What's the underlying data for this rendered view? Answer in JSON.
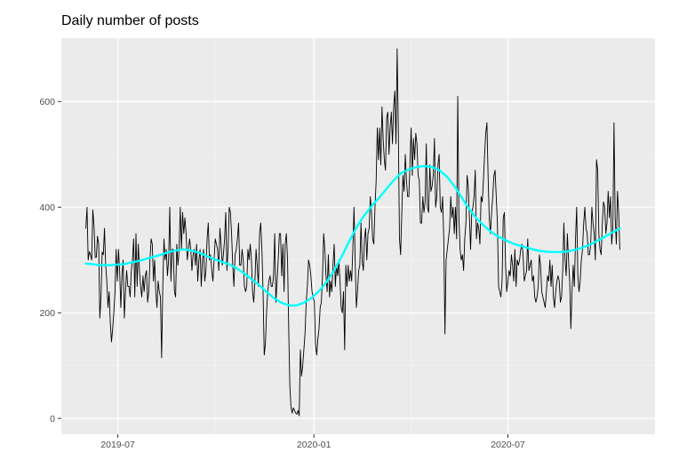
{
  "chart_data": {
    "type": "line",
    "title": "Daily number of posts",
    "xlabel": "",
    "ylabel": "",
    "x_ticks": [
      "2019-07",
      "2020-01",
      "2020-07"
    ],
    "y_ticks": [
      0,
      200,
      400,
      600
    ],
    "ylim": [
      -30,
      720
    ],
    "xlim": [
      "2019-05-09",
      "2020-11-16"
    ],
    "grid": true,
    "legend": "none",
    "x_start": "2019-06-01",
    "x_end": "2020-10-14",
    "colors": {
      "raw": "#000000",
      "smooth": "#00ffff",
      "panel": "#ebebeb",
      "grid_major": "#ffffff",
      "grid_minor": "#f5f5f5"
    },
    "series": [
      {
        "values": [
          360,
          400,
          300,
          316,
          310,
          300,
          395,
          365,
          305,
          305,
          345,
          330,
          190,
          230,
          315,
          310,
          360,
          290,
          260,
          210,
          240,
          180,
          145,
          170,
          200,
          240,
          320,
          260,
          320,
          280,
          210,
          270,
          300,
          190,
          240,
          280,
          250,
          250,
          230,
          280,
          300,
          340,
          230,
          350,
          250,
          330,
          280,
          250,
          230,
          270,
          240,
          270,
          280,
          220,
          240,
          300,
          340,
          330,
          260,
          300,
          240,
          210,
          260,
          240,
          230,
          115,
          250,
          340,
          300,
          320,
          270,
          300,
          400,
          260,
          320,
          320,
          240,
          230,
          330,
          290,
          320,
          400,
          320,
          390,
          350,
          380,
          350,
          300,
          320,
          340,
          320,
          280,
          310,
          320,
          290,
          330,
          260,
          300,
          320,
          250,
          300,
          320,
          260,
          280,
          340,
          370,
          300,
          310,
          280,
          260,
          300,
          340,
          330,
          320,
          280,
          360,
          330,
          290,
          310,
          340,
          390,
          280,
          320,
          400,
          390,
          350,
          290,
          250,
          310,
          320,
          340,
          370,
          290,
          290,
          320,
          300,
          250,
          240,
          250,
          320,
          300,
          330,
          300,
          240,
          220,
          260,
          320,
          290,
          250,
          350,
          370,
          320,
          240,
          120,
          140,
          200,
          240,
          260,
          270,
          250,
          250,
          270,
          350,
          220,
          260,
          300,
          350,
          350,
          270,
          330,
          240,
          330,
          350,
          300,
          170,
          60,
          20,
          10,
          20,
          15,
          10,
          8,
          15,
          5,
          130,
          80,
          100,
          130,
          160,
          220,
          250,
          300,
          290,
          270,
          240,
          230,
          220,
          140,
          120,
          150,
          170,
          210,
          220,
          270,
          350,
          320,
          270,
          240,
          310,
          230,
          260,
          240,
          290,
          330,
          250,
          290,
          270,
          300,
          260,
          210,
          200,
          240,
          130,
          290,
          250,
          290,
          260,
          280,
          260,
          320,
          400,
          300,
          210,
          240,
          280,
          290,
          370,
          300,
          280,
          340,
          360,
          300,
          350,
          360,
          420,
          390,
          340,
          330,
          400,
          450,
          550,
          490,
          550,
          480,
          590,
          530,
          490,
          470,
          570,
          580,
          500,
          550,
          580,
          520,
          590,
          620,
          520,
          700,
          550,
          340,
          310,
          390,
          460,
          430,
          500,
          450,
          420,
          420,
          480,
          550,
          460,
          530,
          490,
          540,
          520,
          460,
          450,
          370,
          370,
          420,
          390,
          410,
          520,
          400,
          390,
          480,
          430,
          440,
          460,
          530,
          400,
          420,
          480,
          500,
          400,
          390,
          420,
          340,
          160,
          300,
          320,
          340,
          360,
          420,
          380,
          400,
          350,
          400,
          340,
          610,
          380,
          320,
          300,
          310,
          280,
          340,
          370,
          460,
          440,
          380,
          320,
          390,
          400,
          420,
          470,
          340,
          370,
          360,
          330,
          420,
          410,
          450,
          500,
          540,
          560,
          460,
          380,
          350,
          390,
          420,
          460,
          470,
          420,
          370,
          250,
          240,
          230,
          260,
          380,
          390,
          290,
          240,
          260,
          280,
          270,
          310,
          290,
          260,
          320,
          250,
          300,
          290,
          300,
          320,
          330,
          310,
          260,
          270,
          280,
          340,
          280,
          290,
          300,
          260,
          270,
          230,
          220,
          230,
          250,
          310,
          290,
          240,
          230,
          220,
          210,
          240,
          270,
          260,
          300,
          250,
          290,
          230,
          210,
          240,
          260,
          270,
          260,
          220,
          230,
          280,
          370,
          300,
          270,
          350,
          300,
          260,
          170,
          240,
          290,
          250,
          340,
          400,
          270,
          240,
          260,
          300,
          320,
          370,
          400,
          360,
          350,
          310,
          310,
          330,
          400,
          370,
          350,
          300,
          490,
          470,
          350,
          320,
          310,
          370,
          410,
          400,
          350,
          370,
          430,
          380,
          420,
          330,
          360,
          560,
          380,
          330,
          430,
          390,
          320
        ]
      },
      {
        "values": [
          293,
          292,
          290,
          290,
          291,
          292,
          295,
          298,
          302,
          306,
          310,
          315,
          318,
          320,
          318,
          314,
          308,
          302,
          297,
          292,
          285,
          275,
          264,
          253,
          240,
          228,
          219,
          214,
          214,
          219,
          228,
          241,
          258,
          280,
          306,
          335,
          362,
          384,
          402,
          418,
          435,
          452,
          465,
          472,
          476,
          478,
          476,
          470,
          458,
          440,
          418,
          396,
          378,
          364,
          352,
          343,
          336,
          330,
          326,
          322,
          318,
          316,
          315,
          315,
          316,
          319,
          323,
          329,
          336,
          344,
          352,
          360
        ]
      }
    ]
  }
}
